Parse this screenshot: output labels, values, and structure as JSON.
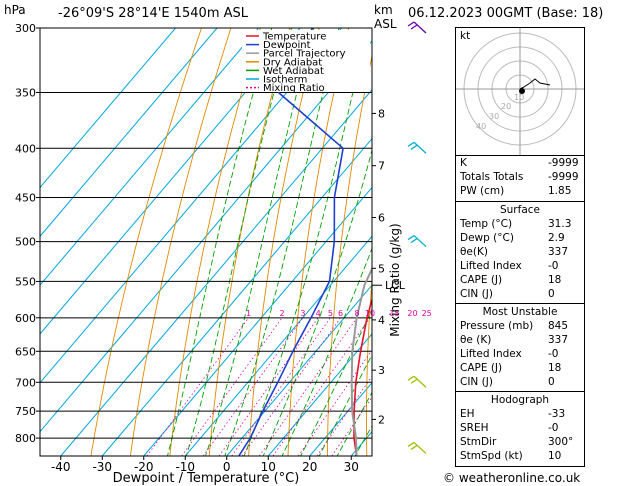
{
  "header": {
    "hpa_unit": "hPa",
    "location": "-26°09'S 28°14'E 1540m ASL",
    "km_unit": "km",
    "asl_unit": "ASL",
    "datetime": "06.12.2023 00GMT (Base: 18)"
  },
  "chart_data": {
    "type": "line",
    "title": "",
    "xlabel": "Dewpoint / Temperature (°C)",
    "ylabel": "hPa",
    "right_axis_label": "Mixing Ratio (g/kg)",
    "skew_note": "skew-T log-p; temperature lines slant to the right with height",
    "xlim": [
      -45,
      35
    ],
    "ylim": [
      835,
      300
    ],
    "y_scale": "log",
    "pressure_levels": [
      300,
      350,
      400,
      450,
      500,
      550,
      600,
      650,
      700,
      750,
      800
    ],
    "temp_ticks": [
      -40,
      -30,
      -20,
      -10,
      0,
      10,
      20,
      30
    ],
    "height_ticks": [
      {
        "label": "8",
        "p": 368
      },
      {
        "label": "7",
        "p": 417
      },
      {
        "label": "6",
        "p": 472
      },
      {
        "label": "5",
        "p": 533
      },
      {
        "label": "4",
        "p": 603
      },
      {
        "label": "3",
        "p": 680
      },
      {
        "label": "2",
        "p": 765
      }
    ],
    "lcl_label": "LCL",
    "lcl_p": 555,
    "mixing_ratio_labels": [
      "1",
      "2",
      "3",
      "4",
      "5",
      "6",
      "8",
      "10",
      "15",
      "20",
      "25"
    ],
    "mixing_ratio_values": [
      1,
      2,
      3,
      4,
      5,
      6,
      8,
      10,
      15,
      20,
      25
    ],
    "isotherm_range": [
      -100,
      40
    ],
    "dry_adiabat_thetas_c": [
      -20,
      -10,
      0,
      10,
      20,
      30,
      40,
      50,
      60,
      70,
      80,
      90,
      100,
      110,
      120
    ],
    "wet_adiabat_start_c": [
      -4,
      0,
      4,
      8,
      12,
      16,
      20,
      24,
      28,
      32,
      36
    ],
    "series": [
      {
        "name": "Temperature",
        "color": "#e8102a",
        "points": [
          [
            835,
            31.3
          ],
          [
            800,
            27
          ],
          [
            750,
            21.5
          ],
          [
            700,
            16
          ],
          [
            650,
            10.8
          ],
          [
            600,
            5.5
          ],
          [
            560,
            1.5
          ],
          [
            550,
            0
          ],
          [
            500,
            -5.5
          ],
          [
            450,
            -11.8
          ],
          [
            420,
            -15
          ],
          [
            400,
            -18.8
          ],
          [
            350,
            -27
          ],
          [
            320,
            -33
          ],
          [
            300,
            -36.5
          ]
        ]
      },
      {
        "name": "Dewpoint",
        "color": "#1f3fd0",
        "points": [
          [
            835,
            2.9
          ],
          [
            800,
            2
          ],
          [
            750,
            -0.5
          ],
          [
            700,
            -2.8
          ],
          [
            650,
            -5.5
          ],
          [
            600,
            -8
          ],
          [
            550,
            -11
          ],
          [
            500,
            -18
          ],
          [
            450,
            -27
          ],
          [
            400,
            -35
          ],
          [
            350,
            -62
          ],
          [
            300,
            -67
          ]
        ]
      },
      {
        "name": "Parcel Trajectory",
        "color": "#999999",
        "points": [
          [
            835,
            31.3
          ],
          [
            800,
            27.5
          ],
          [
            750,
            21
          ],
          [
            700,
            15
          ],
          [
            650,
            8.8
          ],
          [
            600,
            3
          ],
          [
            555,
            -1.8
          ],
          [
            500,
            -5.8
          ],
          [
            450,
            -11
          ],
          [
            400,
            -17.5
          ],
          [
            350,
            -26
          ],
          [
            300,
            -37
          ]
        ]
      }
    ]
  },
  "legend": {
    "items": [
      {
        "label": "Temperature",
        "color": "#e8102a",
        "dash": ""
      },
      {
        "label": "Dewpoint",
        "color": "#1f3fd0",
        "dash": ""
      },
      {
        "label": "Parcel Trajectory",
        "color": "#999999",
        "dash": ""
      },
      {
        "label": "Dry Adiabat",
        "color": "#e08a00",
        "dash": ""
      },
      {
        "label": "Wet Adiabat",
        "color": "#00a000",
        "dash": ""
      },
      {
        "label": "Isotherm",
        "color": "#00a6e0",
        "dash": ""
      },
      {
        "label": "Mixing Ratio",
        "color": "#e000a0",
        "dash": "2,2"
      }
    ]
  },
  "colors": {
    "isotherm": "#00a6e0",
    "dry_adiabat": "#e08a00",
    "wet_adiabat": "#00a000",
    "mixing_ratio": "#e000a0",
    "wind_barb": "#00b0d0",
    "wind_barb_low": "#a0c000",
    "wind_barb_top": "#6a00b0"
  },
  "wind_barbs": [
    {
      "p": 300,
      "color": "#6a00b0"
    },
    {
      "p": 400,
      "color": "#00b0d0"
    },
    {
      "p": 500,
      "color": "#00b0d0"
    },
    {
      "p": 700,
      "color": "#a0c000"
    },
    {
      "p": 820,
      "color": "#a0c000"
    }
  ],
  "hodograph": {
    "unit_label": "kt",
    "ring_labels": [
      "10",
      "20",
      "30",
      "40"
    ]
  },
  "indices": {
    "rows": [
      {
        "key": "K",
        "value": "-9999"
      },
      {
        "key": "Totals Totals",
        "value": "-9999"
      },
      {
        "key": "PW (cm)",
        "value": "1.85"
      }
    ]
  },
  "surface": {
    "title": "Surface",
    "rows": [
      {
        "key": "Temp (°C)",
        "value": "31.3"
      },
      {
        "key": "Dewp (°C)",
        "value": "2.9"
      },
      {
        "key": "θe(K)",
        "value": "337"
      },
      {
        "key": "Lifted Index",
        "value": "-0"
      },
      {
        "key": "CAPE (J)",
        "value": "18"
      },
      {
        "key": "CIN (J)",
        "value": "0"
      }
    ]
  },
  "most_unstable": {
    "title": "Most Unstable",
    "rows": [
      {
        "key": "Pressure (mb)",
        "value": "845"
      },
      {
        "key": "θe (K)",
        "value": "337"
      },
      {
        "key": "Lifted Index",
        "value": "-0"
      },
      {
        "key": "CAPE (J)",
        "value": "18"
      },
      {
        "key": "CIN (J)",
        "value": "0"
      }
    ]
  },
  "hodograph_table": {
    "title": "Hodograph",
    "rows": [
      {
        "key": "EH",
        "value": "-33"
      },
      {
        "key": "SREH",
        "value": "-0"
      },
      {
        "key": "StmDir",
        "value": "300°"
      },
      {
        "key": "StmSpd (kt)",
        "value": "10"
      }
    ]
  },
  "footer": {
    "credit": "© weatheronline.co.uk"
  }
}
